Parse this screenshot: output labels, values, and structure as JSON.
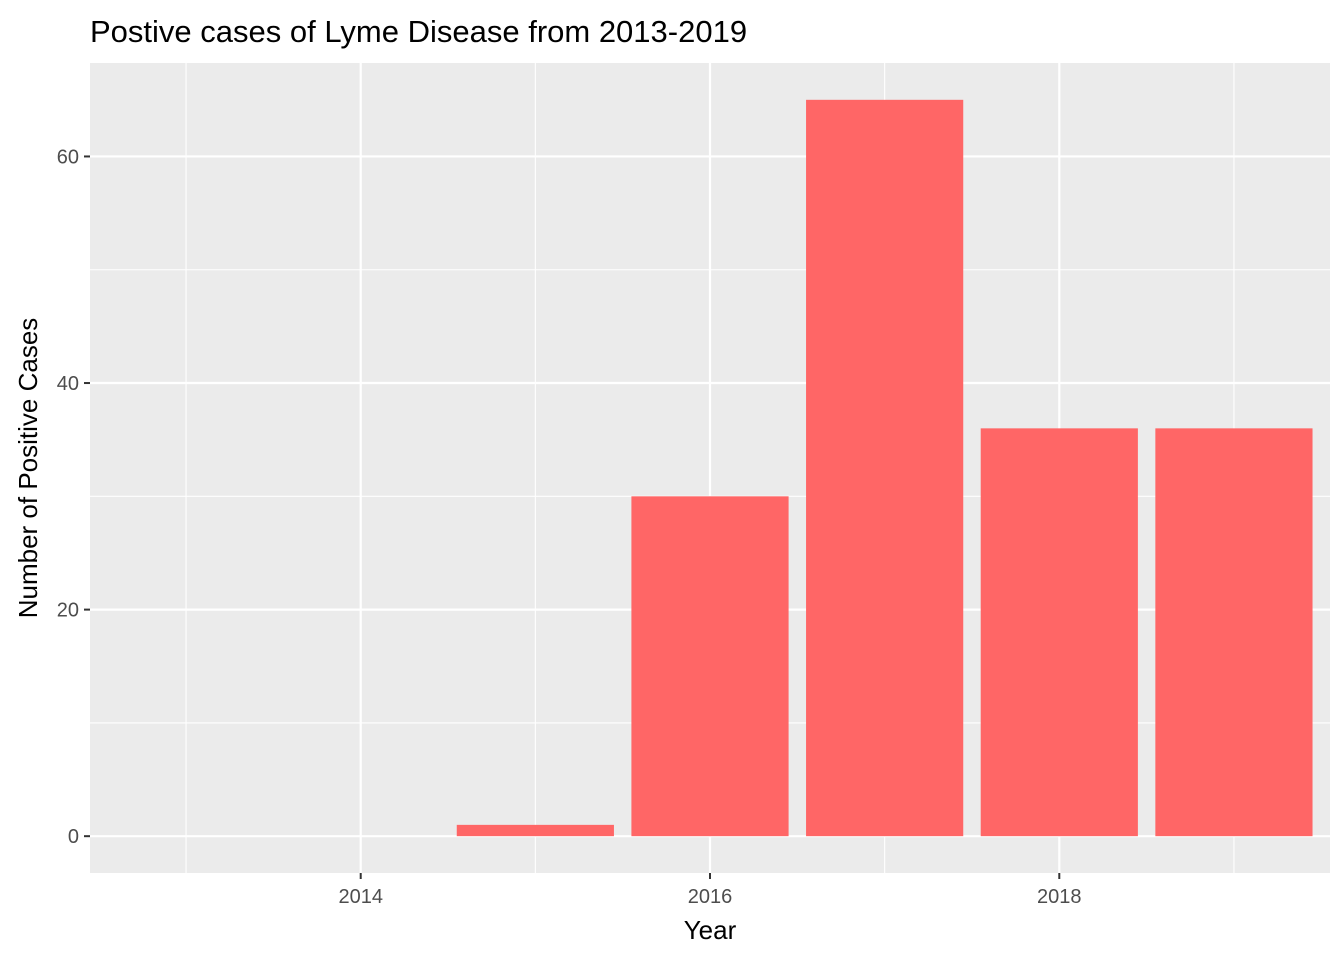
{
  "chart_data": {
    "type": "bar",
    "title": "Postive cases of Lyme Disease from 2013-2019",
    "xlabel": "Year",
    "ylabel": "Number of Positive Cases",
    "x": [
      2013,
      2014,
      2015,
      2016,
      2017,
      2018,
      2019
    ],
    "values": [
      0,
      0,
      1,
      30,
      65,
      36,
      36
    ],
    "xlim": [
      2012.45,
      2019.55
    ],
    "ylim": [
      -3.25,
      68.25
    ],
    "x_ticks": [
      2014,
      2016,
      2018
    ],
    "x_tick_labels": [
      "2014",
      "2016",
      "2018"
    ],
    "y_ticks": [
      0,
      20,
      40,
      60
    ],
    "y_tick_labels": [
      "0",
      "20",
      "40",
      "60"
    ],
    "bar_color": "#ff6666",
    "panel_background": "#ebebeb",
    "grid": true
  }
}
